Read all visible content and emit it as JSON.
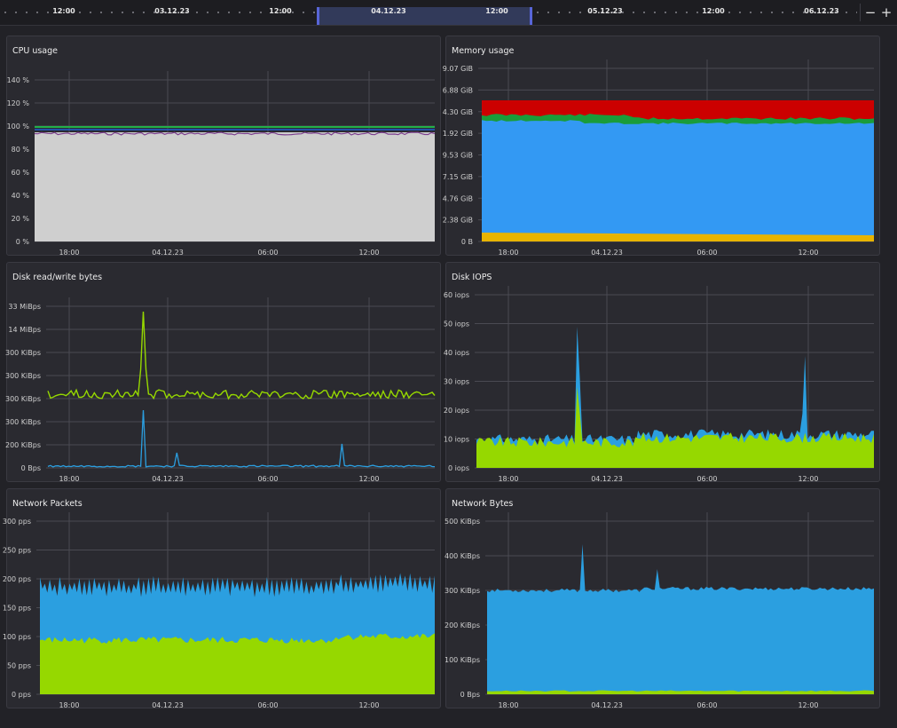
{
  "timeline": {
    "labels": [
      "12:00",
      "03.12.23",
      "12:00",
      "04.12.23",
      "12:00",
      "05.12.23",
      "12:00",
      "06.12.23"
    ],
    "zoom_out": "−",
    "zoom_in": "+"
  },
  "panels": [
    {
      "id": "cpu",
      "title": "CPU usage",
      "y_ticks": [
        "140 %",
        "120 %",
        "100 %",
        "80 %",
        "60 %",
        "40 %",
        "20 %",
        "0 %"
      ],
      "x_ticks": [
        "18:00",
        "04.12.23",
        "06:00",
        "12:00"
      ]
    },
    {
      "id": "memory",
      "title": "Memory usage",
      "y_ticks": [
        "9.07 GiB",
        "6.88 GiB",
        "4.30 GiB",
        "1.92 GiB",
        "9.53 GiB",
        "7.15 GiB",
        "4.76 GiB",
        "2.38 GiB",
        "0 B"
      ],
      "x_ticks": [
        "18:00",
        "04.12.23",
        "06:00",
        "12:00"
      ]
    },
    {
      "id": "disk-bytes",
      "title": "Disk read/write bytes",
      "y_ticks": [
        "33 MiBps",
        "14 MiBps",
        "300 KiBps",
        "300 KiBps",
        "300 KiBps",
        "300 KiBps",
        "200 KiBps",
        "0 Bps"
      ],
      "x_ticks": [
        "18:00",
        "04.12.23",
        "06:00",
        "12:00"
      ]
    },
    {
      "id": "disk-iops",
      "title": "Disk IOPS",
      "y_ticks": [
        "60 iops",
        "50 iops",
        "40 iops",
        "30 iops",
        "20 iops",
        "10 iops",
        "0 iops"
      ],
      "x_ticks": [
        "18:00",
        "04.12.23",
        "06:00",
        "12:00"
      ]
    },
    {
      "id": "net-packets",
      "title": "Network Packets",
      "y_ticks": [
        "300 pps",
        "250 pps",
        "200 pps",
        "150 pps",
        "100 pps",
        "50 pps",
        "0 pps"
      ],
      "x_ticks": [
        "18:00",
        "04.12.23",
        "06:00",
        "12:00"
      ]
    },
    {
      "id": "net-bytes",
      "title": "Network Bytes",
      "y_ticks": [
        "500 KiBps",
        "400 KiBps",
        "300 KiBps",
        "200 KiBps",
        "100 KiBps",
        "0 Bps"
      ],
      "x_ticks": [
        "18:00",
        "04.12.23",
        "06:00",
        "12:00"
      ]
    }
  ],
  "colors": {
    "background": "#222227",
    "panel": "#2a2a30",
    "blue": "#2b9fe0",
    "lime": "#96d800",
    "red": "#cc0000",
    "green": "#1a9c3a",
    "yellow": "#e8b400",
    "gray_fill": "#cfcfcf",
    "selection": "#5865d8"
  }
}
